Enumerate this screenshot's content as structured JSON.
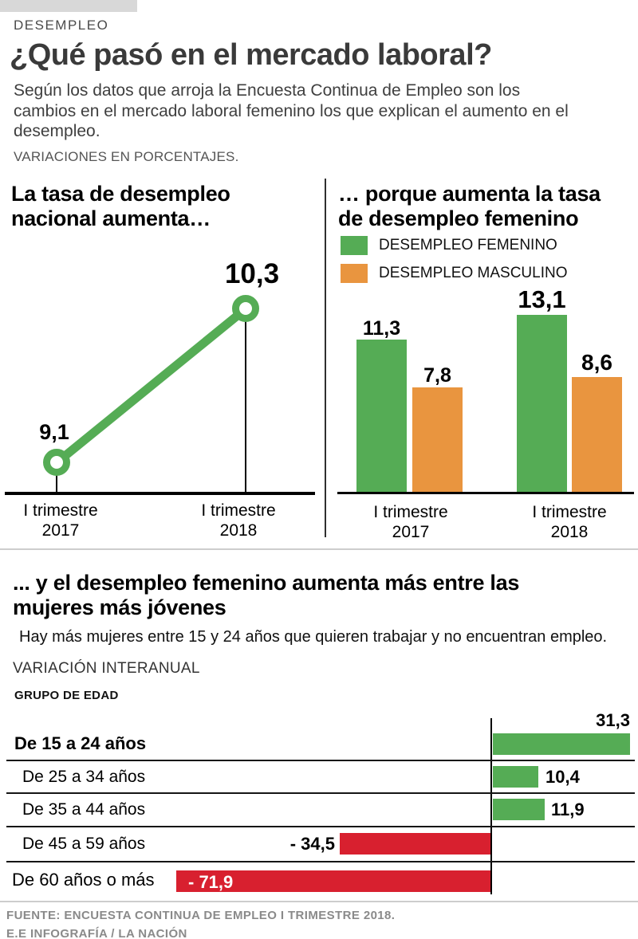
{
  "page": {
    "kicker": "DESEMPLEO",
    "title": "¿Qué pasó en el mercado laboral?",
    "intro": "Según los datos que arroja la Encuesta Continua de Empleo son los cambios en el mercado laboral femenino los que explican el aumento en el desempleo.",
    "unit_note": "VARIACIONES EN PORCENTAJES.",
    "footer": {
      "source": "FUENTE:  ENCUESTA CONTINUA DE EMPLEO I TRIMESTRE 2018.",
      "credit": "E.E INFOGRAFÍA / LA NACIÓN"
    }
  },
  "colors": {
    "green": "#55AC55",
    "orange": "#E9953F",
    "red": "#D8202F",
    "axis": "#000000",
    "gray_bar": "#D8D8D8",
    "divider": "#CDCDCD",
    "footer_text": "#8A8A8A"
  },
  "chart_data": [
    {
      "type": "line",
      "title": "La tasa de desempleo nacional aumenta…",
      "x": [
        "I trimestre 2017",
        "I trimestre 2018"
      ],
      "values": [
        9.1,
        10.3
      ],
      "labels": [
        "9,1",
        "10,3"
      ],
      "series_color": "#55AC55",
      "grid": false,
      "legend_position": "none"
    },
    {
      "type": "bar",
      "title": "… porque aumenta la tasa de desempleo femenino",
      "categories": [
        "I trimestre 2017",
        "I trimestre 2018"
      ],
      "series": [
        {
          "name": "DESEMPLEO FEMENINO",
          "color": "#55AC55",
          "values": [
            11.3,
            13.1
          ],
          "labels": [
            "11,3",
            "13,1"
          ]
        },
        {
          "name": "DESEMPLEO MASCULINO",
          "color": "#E9953F",
          "values": [
            7.8,
            8.6
          ],
          "labels": [
            "7,8",
            "8,6"
          ]
        }
      ],
      "ylim": [
        0,
        14
      ],
      "grid": false,
      "legend_position": "top-left"
    },
    {
      "type": "bar",
      "orientation": "horizontal",
      "title": "... y el desempleo femenino aumenta más entre las mujeres más jóvenes",
      "subtitle": "Hay más mujeres entre 15 y 24 años que quieren trabajar y no encuentran empleo.",
      "header": "VARIACIÓN INTERANUAL",
      "axis_label": "GRUPO DE EDAD",
      "categories": [
        "De 15 a 24 años",
        "De 25 a 34 años",
        "De 35 a 44 años",
        "De 45 a 59 años",
        "De 60 años o más"
      ],
      "values": [
        31.3,
        10.4,
        11.9,
        -34.5,
        -71.9
      ],
      "labels": [
        "31,3",
        "10,4",
        "11,9",
        "- 34,5",
        "- 71,9"
      ],
      "positive_color": "#55AC55",
      "negative_color": "#D8202F",
      "xlim": [
        -80,
        35
      ],
      "grid": false
    }
  ]
}
